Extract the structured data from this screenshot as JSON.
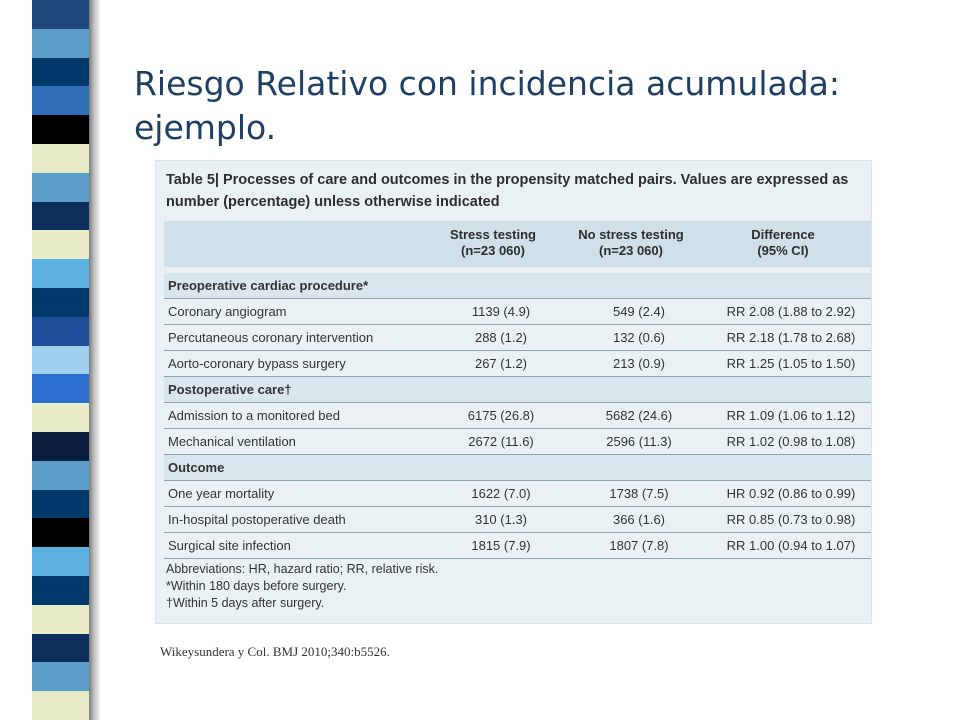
{
  "slide": {
    "title_line1": "Riesgo Relativo con incidencia acumulada:",
    "title_line2": "ejemplo.",
    "citation": "Wikeysundera y Col. BMJ 2010;340:b5526."
  },
  "decor": {
    "stripe_colors": [
      "#1f497d",
      "#5b9fc8",
      "#003a6a",
      "#2e6fb8",
      "#000000",
      "#e8ecc8",
      "#5b9fc8",
      "#0e2f5c",
      "#e8ecc8",
      "#5bb0df",
      "#003a6a",
      "#1f4e9a",
      "#9fd0f0",
      "#2c6fcf",
      "#e8ecc8",
      "#0a1f3d",
      "#5b9fc8",
      "#003a6a",
      "#000000",
      "#5bb0df",
      "#003a6a",
      "#e8ecc8",
      "#0e2f5c",
      "#5b9fc8",
      "#e8ecc8"
    ]
  },
  "table": {
    "caption_label": "Table 5|",
    "caption_text": "Processes of care and outcomes in the propensity matched pairs. Values are expressed as number (percentage) unless otherwise indicated",
    "headers": {
      "col1": "Stress testing",
      "col1_sub": "(n=23 060)",
      "col2": "No stress testing",
      "col2_sub": "(n=23 060)",
      "col3": "Difference",
      "col3_sub": "(95% CI)"
    },
    "rows": [
      {
        "type": "section",
        "label": "Preoperative cardiac procedure*"
      },
      {
        "type": "data",
        "label": "Coronary angiogram",
        "stress": "1139 (4.9)",
        "no_stress": "549 (2.4)",
        "diff": "RR 2.08 (1.88 to 2.92)"
      },
      {
        "type": "data",
        "label": "Percutaneous coronary intervention",
        "stress": "288 (1.2)",
        "no_stress": "132 (0.6)",
        "diff": "RR 2.18 (1.78 to 2.68)"
      },
      {
        "type": "data",
        "label": "Aorto-coronary bypass surgery",
        "stress": "267 (1.2)",
        "no_stress": "213 (0.9)",
        "diff": "RR 1.25 (1.05 to 1.50)"
      },
      {
        "type": "section",
        "label": "Postoperative care†"
      },
      {
        "type": "data",
        "label": "Admission to a monitored bed",
        "stress": "6175 (26.8)",
        "no_stress": "5682 (24.6)",
        "diff": "RR 1.09 (1.06 to 1.12)"
      },
      {
        "type": "data",
        "label": "Mechanical ventilation",
        "stress": "2672 (11.6)",
        "no_stress": "2596 (11.3)",
        "diff": "RR 1.02 (0.98 to 1.08)"
      },
      {
        "type": "section",
        "label": "Outcome"
      },
      {
        "type": "data",
        "label": "One year mortality",
        "stress": "1622 (7.0)",
        "no_stress": "1738 (7.5)",
        "diff": "HR 0.92 (0.86 to 0.99)"
      },
      {
        "type": "data",
        "label": "In-hospital postoperative death",
        "stress": "310 (1.3)",
        "no_stress": "366 (1.6)",
        "diff": "RR 0.85 (0.73 to 0.98)"
      },
      {
        "type": "data",
        "label": "Surgical site infection",
        "stress": "1815 (7.9)",
        "no_stress": "1807 (7.8)",
        "diff": "RR 1.00 (0.94 to 1.07)"
      }
    ],
    "footnotes": {
      "abbrev": "Abbreviations: HR, hazard ratio; RR, relative risk.",
      "star": "*Within 180 days before surgery.",
      "dagger": "†Within 5 days after surgery."
    }
  }
}
